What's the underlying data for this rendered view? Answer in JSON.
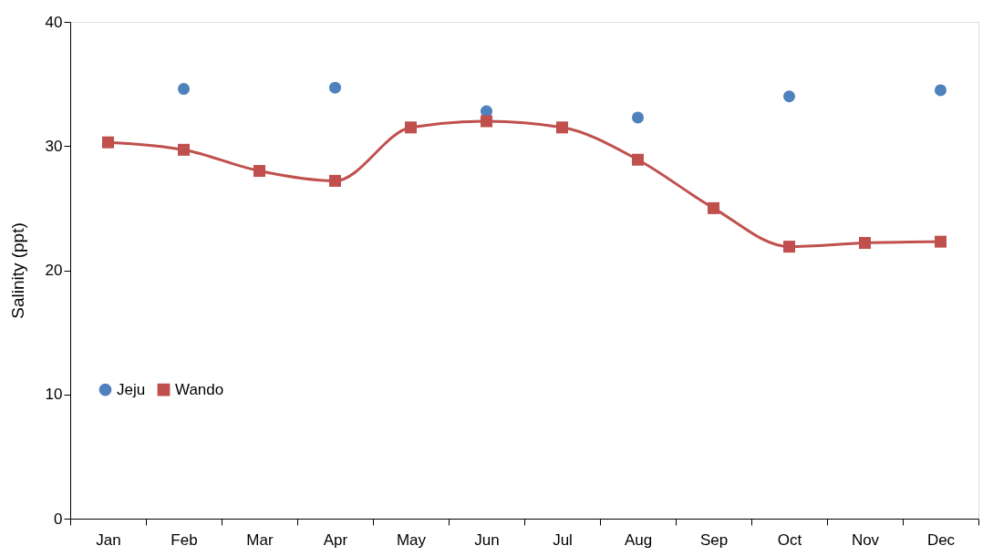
{
  "chart_data": {
    "type": "line",
    "ylabel": "Salinity (ppt)",
    "categories": [
      "Jan",
      "Feb",
      "Mar",
      "Apr",
      "May",
      "Jun",
      "Jul",
      "Aug",
      "Sep",
      "Oct",
      "Nov",
      "Dec"
    ],
    "series": [
      {
        "name": "Jeju",
        "type": "scatter",
        "color": "#4f81bd",
        "marker": "circle",
        "values": [
          null,
          34.6,
          null,
          34.7,
          null,
          32.8,
          null,
          32.3,
          null,
          34.0,
          null,
          34.5
        ]
      },
      {
        "name": "Wando",
        "color": "#c0504d",
        "marker": "square",
        "values": [
          30.3,
          29.7,
          28.0,
          27.2,
          31.5,
          32.0,
          31.5,
          28.9,
          25.0,
          21.9,
          22.2,
          22.3
        ]
      }
    ],
    "ylim": [
      0,
      40
    ],
    "yticks": [
      0,
      10,
      20,
      30,
      40
    ],
    "grid": false,
    "legend": "bottom left"
  }
}
